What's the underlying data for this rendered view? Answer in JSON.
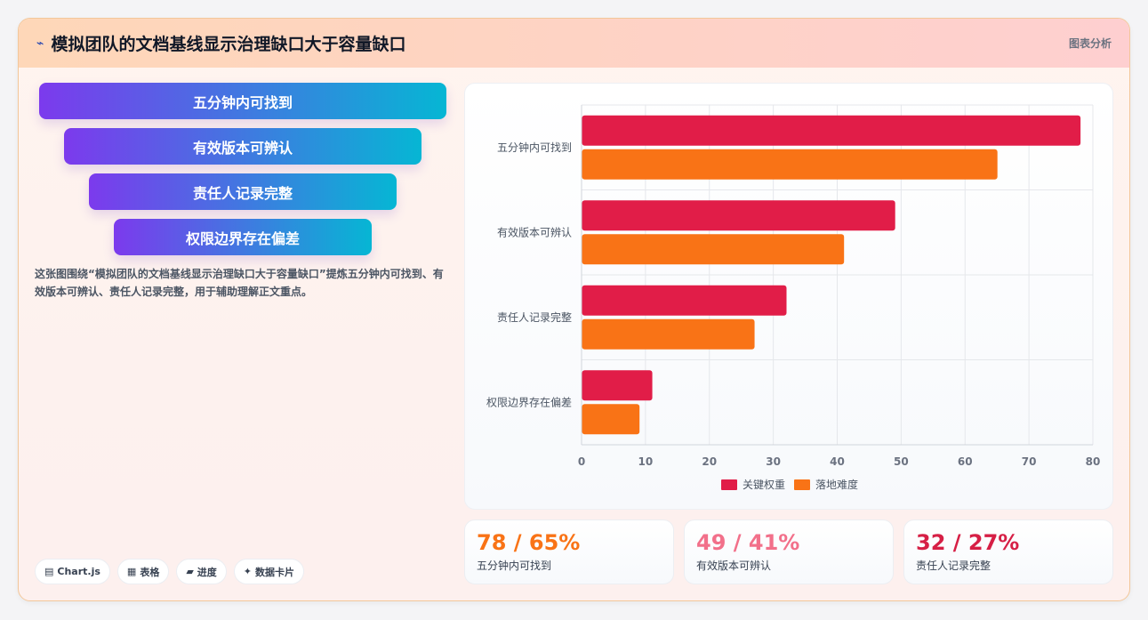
{
  "header": {
    "icon": "⌁",
    "title": "模拟团队的文档基线显示治理缺口大于容量缺口",
    "tag": "图表分析"
  },
  "funnel": {
    "items": [
      "五分钟内可找到",
      "有效版本可辨认",
      "责任人记录完整",
      "权限边界存在偏差"
    ]
  },
  "description": "这张图围绕“模拟团队的文档基线显示治理缺口大于容量缺口”提炼五分钟内可找到、有效版本可辨认、责任人记录完整，用于辅助理解正文重点。",
  "chips": [
    {
      "icon": "▤",
      "label": "Chart.js"
    },
    {
      "icon": "▦",
      "label": "表格"
    },
    {
      "icon": "▰",
      "label": "进度"
    },
    {
      "icon": "✦",
      "label": "数据卡片"
    }
  ],
  "chart_data": {
    "type": "bar",
    "orientation": "horizontal",
    "categories": [
      "五分钟内可找到",
      "有效版本可辨认",
      "责任人记录完整",
      "权限边界存在偏差"
    ],
    "series": [
      {
        "name": "关键权重",
        "values": [
          78,
          49,
          32,
          11
        ],
        "color": "#e11d48"
      },
      {
        "name": "落地难度",
        "values": [
          65,
          41,
          27,
          9
        ],
        "color": "#f97316"
      }
    ],
    "xlim": [
      0,
      80
    ],
    "xticks": [
      0,
      10,
      20,
      30,
      40,
      50,
      60,
      70,
      80
    ],
    "grid": true,
    "legend": "bottom"
  },
  "stats": [
    {
      "value": "78 / 65%",
      "label": "五分钟内可找到",
      "color": "#f97316"
    },
    {
      "value": "49 / 41%",
      "label": "有效版本可辨认",
      "color": "#f2708a"
    },
    {
      "value": "32 / 27%",
      "label": "责任人记录完整",
      "color": "#d61f45"
    }
  ]
}
